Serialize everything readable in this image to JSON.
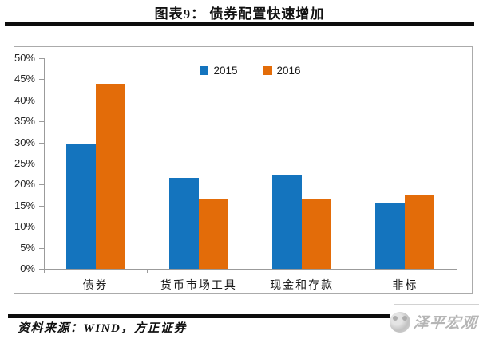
{
  "header": {
    "title": "图表9： 债券配置快速增加"
  },
  "chart_data": {
    "type": "bar",
    "categories": [
      "债券",
      "货币市场工具",
      "现金和存款",
      "非标"
    ],
    "series": [
      {
        "name": "2015",
        "color": "#1474be",
        "values": [
          29.5,
          21.5,
          22.4,
          15.8
        ]
      },
      {
        "name": "2016",
        "color": "#e36c09",
        "values": [
          44.0,
          16.6,
          16.6,
          17.6
        ]
      }
    ],
    "title": "债券配置快速增加",
    "xlabel": "",
    "ylabel": "",
    "ylim": [
      0,
      50
    ],
    "ytick_step": 5,
    "ytick_suffix": "%",
    "legend_position": "top-center",
    "grid": false
  },
  "footer": {
    "source": "资料来源：WIND，方正证券",
    "watermark": "泽平宏观"
  }
}
